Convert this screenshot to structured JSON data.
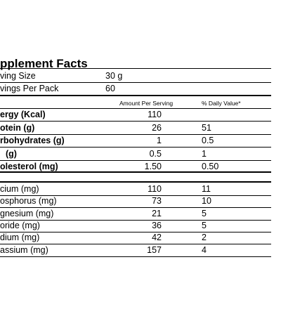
{
  "title": "pplement Facts",
  "serving": [
    [
      "ving Size",
      "30 g"
    ],
    [
      "vings Per Pack",
      "60"
    ]
  ],
  "header": {
    "amount": "Amount Per Serving",
    "daily_value": "% Daily Value*"
  },
  "nutrients": [
    [
      "ergy (Kcal)",
      "110",
      ""
    ],
    [
      "otein (g)",
      "26",
      "51"
    ],
    [
      "rbohydrates (g)",
      "1",
      "0.5"
    ],
    [
      " (g)",
      "0.5",
      "1"
    ],
    [
      "olesterol (mg)",
      "1.50",
      "0.50"
    ]
  ],
  "minerals": [
    [
      "cium (mg)",
      "110",
      "11"
    ],
    [
      "osphorus (mg)",
      "73",
      "10"
    ],
    [
      "gnesium (mg)",
      "21",
      "5"
    ],
    [
      "oride (mg)",
      "36",
      "5"
    ],
    [
      "dium (mg)",
      "42",
      "2"
    ],
    [
      "assium (mg)",
      "157",
      "4"
    ]
  ]
}
